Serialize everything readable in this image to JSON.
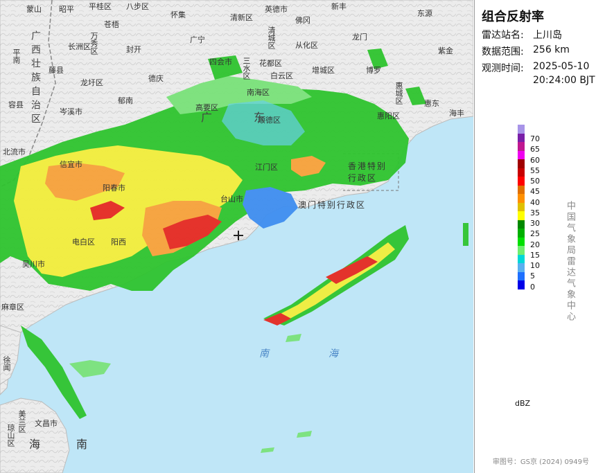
{
  "panel": {
    "title": "组合反射率",
    "station_label": "雷达站名:",
    "station_value": "上川岛",
    "range_label": "数据范围:",
    "range_value": "256 km",
    "time_label": "观测时间:",
    "time_date": "2025-05-10",
    "time_clock": "20:24:00 BJT",
    "unit": "dBZ",
    "agency": "中国气象局雷达气象中心",
    "review_no": "审图号：GS京 (2024) 0949号"
  },
  "legend": {
    "ticks": [
      "70",
      "65",
      "60",
      "55",
      "50",
      "45",
      "40",
      "35",
      "30",
      "25",
      "20",
      "15",
      "10",
      "5",
      "0"
    ],
    "colors": [
      "#a894e8",
      "#7a1fa8",
      "#c01890",
      "#f000f0",
      "#a00000",
      "#c80000",
      "#ff0000",
      "#e07000",
      "#ff9000",
      "#e0c000",
      "#ffff00",
      "#008800",
      "#00b000",
      "#00e000",
      "#70ee70",
      "#00d8d8",
      "#5ab0f0",
      "#1e70ff",
      "#0000e8"
    ]
  },
  "map": {
    "places": [
      {
        "name": "蒙山"
      },
      {
        "name": "昭平"
      },
      {
        "name": "平桂区"
      },
      {
        "name": "八步区"
      },
      {
        "name": "怀集"
      },
      {
        "name": "清新区"
      },
      {
        "name": "英德市"
      },
      {
        "name": "佛冈"
      },
      {
        "name": "新丰"
      },
      {
        "name": "东源"
      },
      {
        "name": "苍梧"
      },
      {
        "name": "长洲区"
      },
      {
        "name": "万秀区"
      },
      {
        "name": "封开"
      },
      {
        "name": "广宁"
      },
      {
        "name": "清城区"
      },
      {
        "name": "从化区"
      },
      {
        "name": "龙门"
      },
      {
        "name": "紫金"
      },
      {
        "name": "平南"
      },
      {
        "name": "藤县"
      },
      {
        "name": "四会市"
      },
      {
        "name": "三水区"
      },
      {
        "name": "花都区"
      },
      {
        "name": "白云区"
      },
      {
        "name": "增城区"
      },
      {
        "name": "博罗"
      },
      {
        "name": "惠城区"
      },
      {
        "name": "龙圩区"
      },
      {
        "name": "德庆"
      },
      {
        "name": "南海区"
      },
      {
        "name": "容县"
      },
      {
        "name": "岑溪市"
      },
      {
        "name": "郁南"
      },
      {
        "name": "高要区"
      },
      {
        "name": "顺德区"
      },
      {
        "name": "惠阳区"
      },
      {
        "name": "惠东"
      },
      {
        "name": "海丰"
      },
      {
        "name": "北流市"
      },
      {
        "name": "信宜市"
      },
      {
        "name": "江门区"
      },
      {
        "name": "阳春市"
      },
      {
        "name": "台山市"
      },
      {
        "name": "电白区"
      },
      {
        "name": "阳西"
      },
      {
        "name": "吴川市"
      },
      {
        "name": "麻章区"
      },
      {
        "name": "徐闻"
      },
      {
        "name": "文昌市"
      },
      {
        "name": "琼山区"
      },
      {
        "name": "美兰区"
      },
      {
        "name": "香港特别行政区"
      },
      {
        "name": "澳门特别行政区"
      },
      {
        "name": "广西壮族自治区"
      },
      {
        "name": "广东"
      }
    ],
    "seas": [
      "南",
      "海",
      "海",
      "南"
    ]
  }
}
